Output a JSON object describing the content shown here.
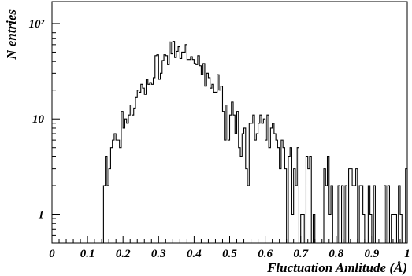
{
  "chart_data": {
    "type": "histogram",
    "xlabel": "Fluctuation Amlitude (Å)",
    "ylabel": "N entries",
    "xlim": [
      0,
      1
    ],
    "y_scale": "log",
    "ylim": [
      0.5,
      170
    ],
    "x_ticks": [
      "0",
      "0.1",
      "0.2",
      "0.3",
      "0.4",
      "0.5",
      "0.6",
      "0.7",
      "0.8",
      "0.9",
      "1"
    ],
    "y_ticks": [
      {
        "value": 1,
        "label": "1"
      },
      {
        "value": 10,
        "label": "10"
      },
      {
        "value": 100,
        "label": "10²"
      }
    ],
    "grid": false,
    "bin_width": 0.005,
    "envelope_x": [
      0.14,
      0.15,
      0.17,
      0.19,
      0.21,
      0.24,
      0.27,
      0.3,
      0.33,
      0.345,
      0.36,
      0.38,
      0.41,
      0.44,
      0.47,
      0.5,
      0.53,
      0.56,
      0.6,
      0.625,
      0.65,
      0.7,
      0.75,
      0.8,
      0.85,
      0.9,
      0.95,
      1.0
    ],
    "envelope_y": [
      1.6,
      2.2,
      3.5,
      7,
      11,
      16,
      24,
      36,
      50,
      56,
      50,
      44,
      36,
      27,
      19,
      12,
      8,
      6.5,
      6.5,
      6,
      4,
      2.7,
      2.0,
      1.6,
      1.3,
      1.1,
      1.0,
      0.9
    ]
  }
}
